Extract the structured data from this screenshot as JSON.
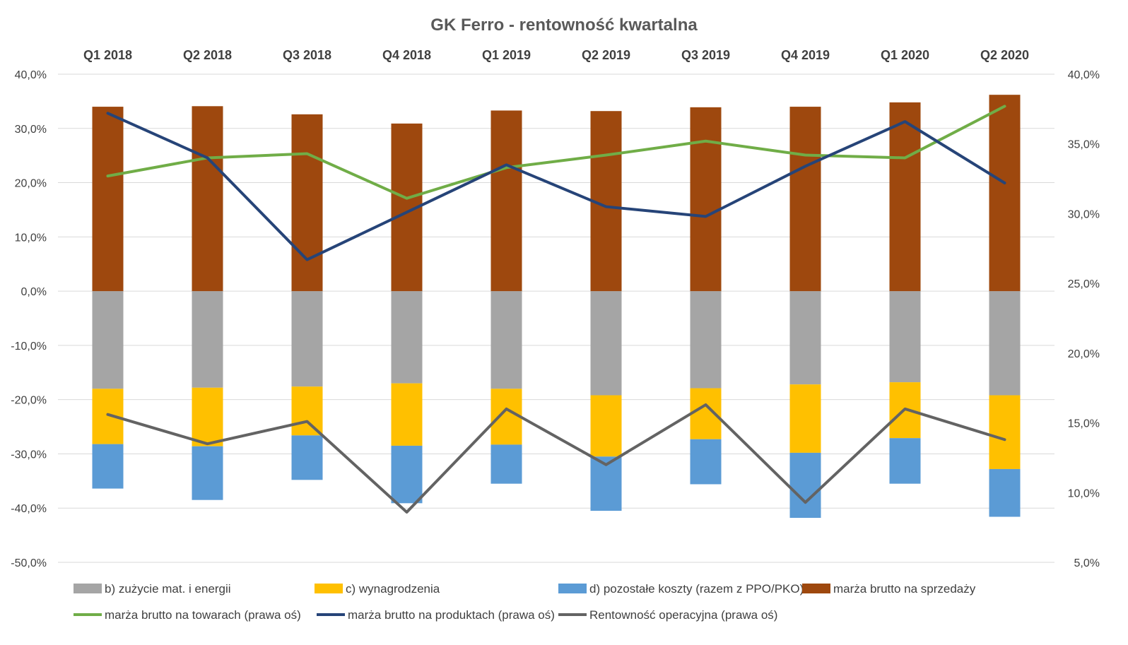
{
  "chart_data": {
    "type": "bar",
    "title": "GK Ferro - rentowność kwartalna",
    "categories": [
      "Q1 2018",
      "Q2 2018",
      "Q3 2018",
      "Q4 2018",
      "Q1 2019",
      "Q2 2019",
      "Q3 2019",
      "Q4 2019",
      "Q1 2020",
      "Q2 2020"
    ],
    "left_axis": {
      "range": [
        -50,
        40
      ],
      "ticks": [
        40,
        30,
        20,
        10,
        0,
        -10,
        -20,
        -30,
        -40,
        -50
      ],
      "tick_labels": [
        "40,0%",
        "30,0%",
        "20,0%",
        "10,0%",
        "0,0%",
        "-10,0%",
        "-20,0%",
        "-30,0%",
        "-40,0%",
        "-50,0%"
      ]
    },
    "right_axis": {
      "range": [
        5,
        40
      ],
      "ticks": [
        40,
        35,
        30,
        25,
        20,
        15,
        10,
        5
      ],
      "tick_labels": [
        "40,0%",
        "35,0%",
        "30,0%",
        "25,0%",
        "20,0%",
        "15,0%",
        "10,0%",
        "5,0%"
      ]
    },
    "grid": true,
    "legend_position": "bottom",
    "bar_series": [
      {
        "name": "b) zużycie mat. i energii",
        "color": "#a5a5a5",
        "values": [
          -18.0,
          -17.8,
          -17.6,
          -17.0,
          -18.0,
          -19.2,
          -17.9,
          -17.2,
          -16.8,
          -19.2
        ]
      },
      {
        "name": "c) wynagrodzenia",
        "color": "#ffc000",
        "values": [
          -10.2,
          -10.8,
          -9.0,
          -11.5,
          -10.3,
          -11.3,
          -9.4,
          -12.6,
          -10.3,
          -13.6
        ]
      },
      {
        "name": "d) pozostałe koszty (razem z PPO/PKO)",
        "color": "#5b9bd5",
        "values": [
          -8.2,
          -9.9,
          -8.2,
          -10.6,
          -7.2,
          -10.0,
          -8.3,
          -12.0,
          -8.4,
          -8.8
        ]
      },
      {
        "name": "marża brutto na sprzedaży",
        "color": "#9e480e",
        "values": [
          34.0,
          34.1,
          32.6,
          30.9,
          33.3,
          33.2,
          33.9,
          34.0,
          34.8,
          36.2
        ]
      }
    ],
    "line_series": [
      {
        "name": "marża brutto na towarach (prawa oś)",
        "color": "#70ad47",
        "values": [
          32.7,
          34.0,
          34.3,
          31.1,
          33.3,
          34.2,
          35.2,
          34.2,
          34.0,
          37.7
        ]
      },
      {
        "name": "marża brutto na produktach (prawa oś)",
        "color": "#264478",
        "values": [
          37.2,
          34.0,
          26.7,
          30.1,
          33.5,
          30.5,
          29.8,
          33.4,
          36.6,
          32.2
        ]
      },
      {
        "name": "Rentowność operacyjna (prawa oś)",
        "color": "#636363",
        "values": [
          15.6,
          13.5,
          15.1,
          8.6,
          16.0,
          12.0,
          16.3,
          9.3,
          16.0,
          13.8
        ]
      }
    ]
  }
}
